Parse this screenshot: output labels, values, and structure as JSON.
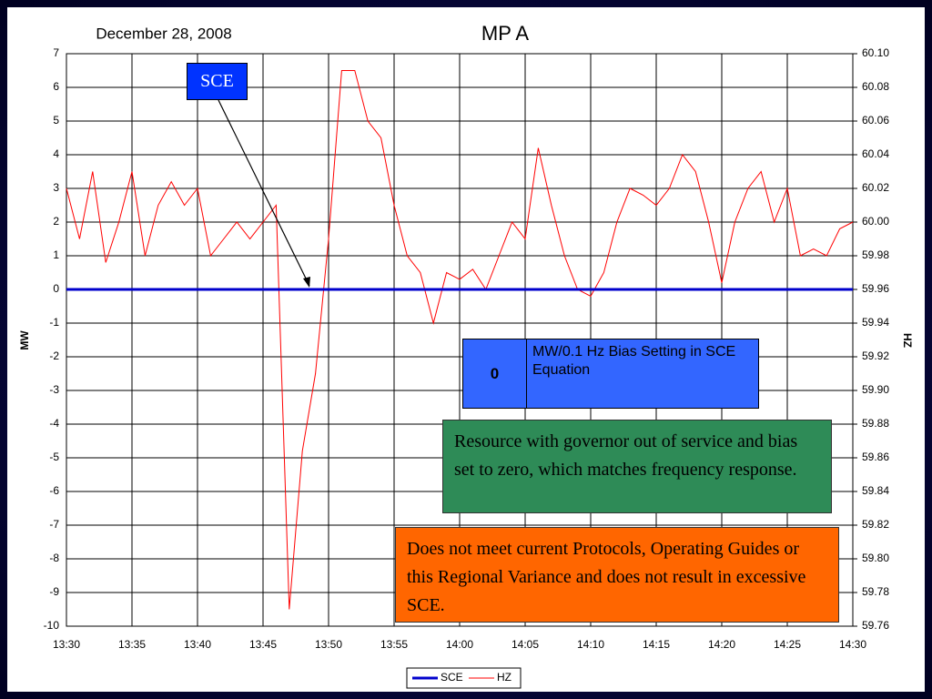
{
  "chart_data": {
    "type": "line",
    "title": "MP A",
    "subtitle": "December 28, 2008",
    "ylabel": "MW",
    "y2label": "HZ",
    "x": [
      "13:30",
      "13:31",
      "13:32",
      "13:33",
      "13:34",
      "13:35",
      "13:36",
      "13:37",
      "13:38",
      "13:39",
      "13:40",
      "13:41",
      "13:42",
      "13:43",
      "13:44",
      "13:45",
      "13:46",
      "13:47",
      "13:48",
      "13:49",
      "13:50",
      "13:51",
      "13:52",
      "13:53",
      "13:54",
      "13:55",
      "13:56",
      "13:57",
      "13:58",
      "13:59",
      "14:00",
      "14:01",
      "14:02",
      "14:03",
      "14:04",
      "14:05",
      "14:06",
      "14:07",
      "14:08",
      "14:09",
      "14:10",
      "14:11",
      "14:12",
      "14:13",
      "14:14",
      "14:15",
      "14:16",
      "14:17",
      "14:18",
      "14:19",
      "14:20",
      "14:21",
      "14:22",
      "14:23",
      "14:24",
      "14:25",
      "14:26",
      "14:27",
      "14:28",
      "14:29",
      "14:30"
    ],
    "series": [
      {
        "name": "SCE",
        "color": "#0000cc",
        "axis": "y",
        "values": [
          0,
          0,
          0,
          0,
          0,
          0,
          0,
          0,
          0,
          0,
          0,
          0,
          0,
          0,
          0,
          0,
          0,
          0,
          0,
          0,
          0,
          0,
          0,
          0,
          0,
          0,
          0,
          0,
          0,
          0,
          0,
          0,
          0,
          0,
          0,
          0,
          0,
          0,
          0,
          0,
          0,
          0,
          0,
          0,
          0,
          0,
          0,
          0,
          0,
          0,
          0,
          0,
          0,
          0,
          0,
          0,
          0,
          0,
          0,
          0,
          0
        ]
      },
      {
        "name": "HZ",
        "color": "#ff0000",
        "axis": "y2",
        "values": [
          60.02,
          59.99,
          60.03,
          59.976,
          60.0,
          60.03,
          59.98,
          60.01,
          60.024,
          60.01,
          60.02,
          59.98,
          59.99,
          60.0,
          59.99,
          60.0,
          60.01,
          59.77,
          59.864,
          59.91,
          59.99,
          60.09,
          60.09,
          60.06,
          60.05,
          60.01,
          59.98,
          59.97,
          59.94,
          59.97,
          59.966,
          59.972,
          59.96,
          59.98,
          60.0,
          59.99,
          60.044,
          60.01,
          59.98,
          59.96,
          59.956,
          59.97,
          60.0,
          60.02,
          60.016,
          60.01,
          60.02,
          60.04,
          60.03,
          60.0,
          59.964,
          60.0,
          60.02,
          60.03,
          60.0,
          60.02,
          59.98,
          59.984,
          59.98,
          59.996,
          60.0
        ]
      }
    ],
    "xticks": [
      "13:30",
      "13:35",
      "13:40",
      "13:45",
      "13:50",
      "13:55",
      "14:00",
      "14:05",
      "14:10",
      "14:15",
      "14:20",
      "14:25",
      "14:30"
    ],
    "ylim": [
      -10,
      7
    ],
    "yticks": [
      -10,
      -9,
      -8,
      -7,
      -6,
      -5,
      -4,
      -3,
      -2,
      -1,
      0,
      1,
      2,
      3,
      4,
      5,
      6,
      7
    ],
    "y2lim": [
      59.76,
      60.1
    ],
    "y2ticks": [
      59.76,
      59.78,
      {
        "value": 59.8,
        "label": "59.80"
      },
      59.82,
      59.84,
      59.86,
      59.88,
      {
        "value": 59.9,
        "label": "59.90"
      },
      59.92,
      59.94,
      59.96,
      59.98,
      {
        "value": 60.0,
        "label": "60.00"
      },
      60.02,
      60.04,
      60.06,
      60.08,
      {
        "value": 60.1,
        "label": "60.10"
      }
    ],
    "grid": true,
    "legend": "bottom",
    "annotations": [
      "SCE",
      "0",
      "MW/0.1 Hz Bias Setting in SCE Equation",
      "Resource with governor out of service and bias set to zero, which matches frequency response.",
      "Does not meet current Protocols, Operating Guides or this Regional Variance and does not result in excessive SCE."
    ]
  }
}
